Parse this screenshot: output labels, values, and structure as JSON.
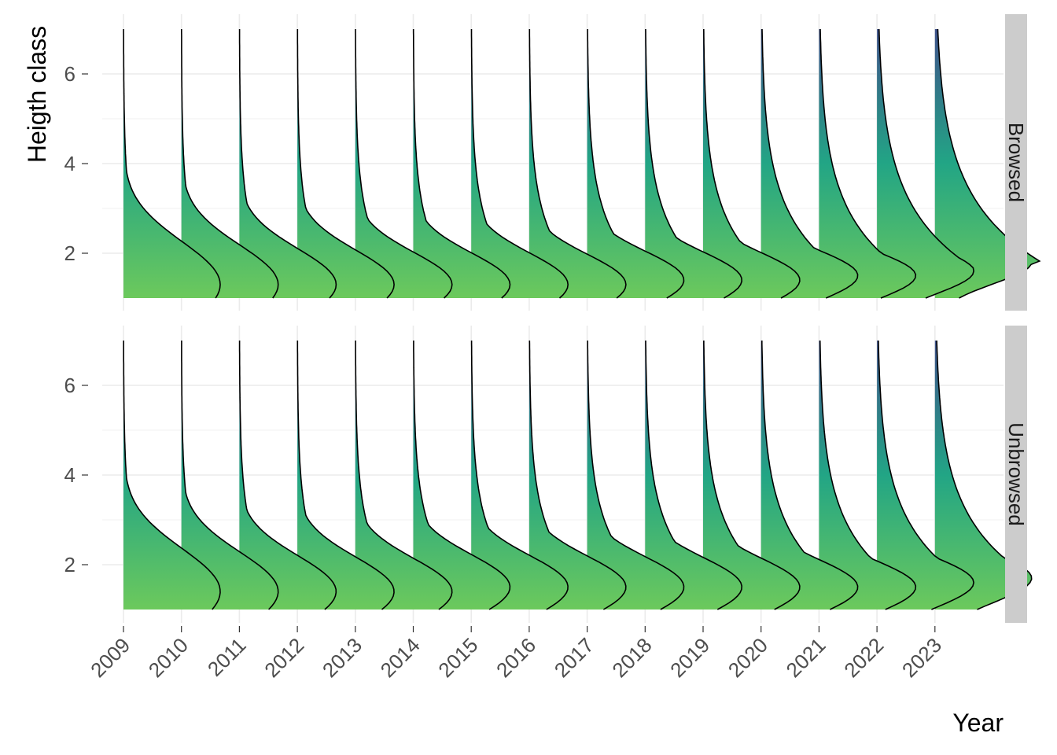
{
  "chart_data": {
    "type": "ridgeline",
    "xlabel": "Year",
    "ylabel": "Heigth class",
    "years": [
      "2009",
      "2010",
      "2011",
      "2012",
      "2013",
      "2014",
      "2015",
      "2016",
      "2017",
      "2018",
      "2019",
      "2020",
      "2021",
      "2022",
      "2023"
    ],
    "y_ticks": [
      2,
      4,
      6
    ],
    "ylim": [
      1,
      7
    ],
    "grid": true,
    "fill_gradient": {
      "low": "#6cc95c",
      "mid": "#22a585",
      "high": "#3f528b"
    },
    "panels": [
      {
        "strip": "Browsed",
        "densities": [
          {
            "year": "2009",
            "mode": 1.3,
            "width": 0.6,
            "upper_tail": 0.45
          },
          {
            "year": "2010",
            "mode": 1.3,
            "width": 0.55,
            "upper_tail": 0.45
          },
          {
            "year": "2011",
            "mode": 1.3,
            "width": 0.5,
            "upper_tail": 0.5
          },
          {
            "year": "2012",
            "mode": 1.3,
            "width": 0.48,
            "upper_tail": 0.5
          },
          {
            "year": "2013",
            "mode": 1.3,
            "width": 0.45,
            "upper_tail": 0.55
          },
          {
            "year": "2014",
            "mode": 1.3,
            "width": 0.44,
            "upper_tail": 0.55
          },
          {
            "year": "2015",
            "mode": 1.3,
            "width": 0.44,
            "upper_tail": 0.6
          },
          {
            "year": "2016",
            "mode": 1.3,
            "width": 0.42,
            "upper_tail": 0.65
          },
          {
            "year": "2017",
            "mode": 1.4,
            "width": 0.4,
            "upper_tail": 0.7
          },
          {
            "year": "2018",
            "mode": 1.4,
            "width": 0.39,
            "upper_tail": 0.75
          },
          {
            "year": "2019",
            "mode": 1.4,
            "width": 0.38,
            "upper_tail": 0.8
          },
          {
            "year": "2020",
            "mode": 1.5,
            "width": 0.35,
            "upper_tail": 0.9
          },
          {
            "year": "2021",
            "mode": 1.5,
            "width": 0.33,
            "upper_tail": 0.95
          },
          {
            "year": "2022",
            "mode": 1.6,
            "width": 0.32,
            "upper_tail": 1.05
          },
          {
            "year": "2023",
            "mode": 1.8,
            "width": 0.3,
            "upper_tail": 1.1
          }
        ]
      },
      {
        "strip": "Unbrowsed",
        "densities": [
          {
            "year": "2009",
            "mode": 1.4,
            "width": 0.6,
            "upper_tail": 0.45
          },
          {
            "year": "2010",
            "mode": 1.4,
            "width": 0.55,
            "upper_tail": 0.45
          },
          {
            "year": "2011",
            "mode": 1.4,
            "width": 0.5,
            "upper_tail": 0.5
          },
          {
            "year": "2012",
            "mode": 1.4,
            "width": 0.48,
            "upper_tail": 0.5
          },
          {
            "year": "2013",
            "mode": 1.4,
            "width": 0.46,
            "upper_tail": 0.55
          },
          {
            "year": "2014",
            "mode": 1.5,
            "width": 0.45,
            "upper_tail": 0.6
          },
          {
            "year": "2015",
            "mode": 1.5,
            "width": 0.44,
            "upper_tail": 0.62
          },
          {
            "year": "2016",
            "mode": 1.5,
            "width": 0.43,
            "upper_tail": 0.65
          },
          {
            "year": "2017",
            "mode": 1.5,
            "width": 0.42,
            "upper_tail": 0.7
          },
          {
            "year": "2018",
            "mode": 1.5,
            "width": 0.41,
            "upper_tail": 0.75
          },
          {
            "year": "2019",
            "mode": 1.5,
            "width": 0.4,
            "upper_tail": 0.8
          },
          {
            "year": "2020",
            "mode": 1.5,
            "width": 0.38,
            "upper_tail": 0.85
          },
          {
            "year": "2021",
            "mode": 1.5,
            "width": 0.36,
            "upper_tail": 0.9
          },
          {
            "year": "2022",
            "mode": 1.6,
            "width": 0.35,
            "upper_tail": 0.95
          },
          {
            "year": "2023",
            "mode": 1.7,
            "width": 0.34,
            "upper_tail": 1.0
          }
        ]
      }
    ]
  }
}
